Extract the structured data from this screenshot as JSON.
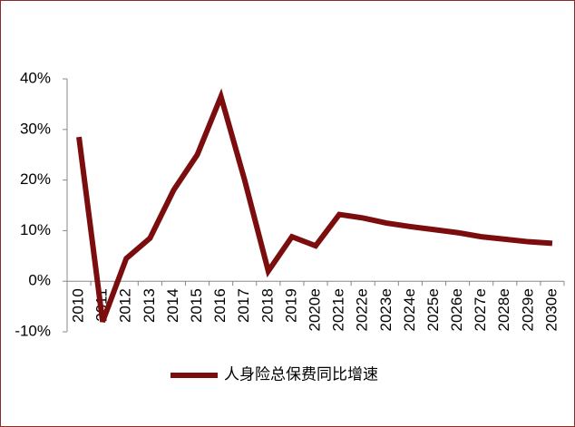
{
  "chart_data": {
    "type": "line",
    "categories": [
      "2010",
      "2011",
      "2012",
      "2013",
      "2014",
      "2015",
      "2016",
      "2017",
      "2018",
      "2019",
      "2020e",
      "2021e",
      "2022e",
      "2023e",
      "2024e",
      "2025e",
      "2026e",
      "2027e",
      "2028e",
      "2029e",
      "2030e"
    ],
    "series": [
      {
        "name": "人身险总保费同比增速",
        "color": "#7b0d0f",
        "values": [
          28.5,
          -8,
          4.5,
          8.5,
          18,
          25,
          36.5,
          20,
          2,
          8.8,
          7,
          13.2,
          12.5,
          11.5,
          10.8,
          10.2,
          9.6,
          8.8,
          8.3,
          7.8,
          7.5
        ]
      }
    ],
    "ylim": [
      -10,
      40
    ],
    "yticks": [
      {
        "value": -10,
        "label": "-10%"
      },
      {
        "value": 0,
        "label": "0%"
      },
      {
        "value": 10,
        "label": "10%"
      },
      {
        "value": 20,
        "label": "20%"
      },
      {
        "value": 30,
        "label": "30%"
      },
      {
        "value": 40,
        "label": "40%"
      }
    ],
    "legend": "bottom",
    "grid": false
  }
}
